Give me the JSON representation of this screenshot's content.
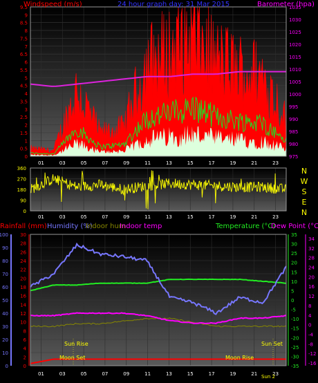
{
  "top": {
    "title": "24 hour graph day: 31 Mar 2015",
    "left_label": "Windspeed (m/s)",
    "right_label": "Barometer (hpa)",
    "left_ticks": [
      "0",
      "0.5",
      "1",
      "1.5",
      "2",
      "2.5",
      "3",
      "3.5",
      "4",
      "4.5",
      "5",
      "5.5",
      "6",
      "6.5",
      "7",
      "7.5",
      "8",
      "8.5",
      "9",
      "9.5"
    ],
    "right_ticks": [
      "975",
      "980",
      "985",
      "990",
      "995",
      "1000",
      "1005",
      "1010",
      "1015",
      "1020",
      "1025",
      "1030",
      "1035"
    ],
    "x_ticks": [
      "01",
      "03",
      "05",
      "07",
      "09",
      "11",
      "13",
      "15",
      "17",
      "19",
      "21",
      "23"
    ]
  },
  "dir": {
    "left_ticks": [
      "0",
      "90",
      "180",
      "270",
      "360"
    ],
    "compass": [
      "N",
      "W",
      "S",
      "E",
      "N"
    ],
    "x_ticks": [
      "01",
      "03",
      "05",
      "07",
      "09",
      "11",
      "13",
      "15",
      "17",
      "19",
      "21",
      "23"
    ]
  },
  "bottom": {
    "rain_label": "Rainfall (mm)",
    "hum_label": "Humidity (%)",
    "inhum_label": "Indoor hum",
    "intemp_label": "Indoor temp",
    "temp_label": "Temperature (°C)",
    "dew_label": "Dew Point (°C)",
    "hum_ticks": [
      "0",
      "10",
      "20",
      "30",
      "40",
      "50",
      "60",
      "70",
      "80",
      "90",
      "100"
    ],
    "rain_ticks": [
      "0",
      "2",
      "4",
      "6",
      "8",
      "10",
      "12",
      "14",
      "16",
      "18",
      "20",
      "22",
      "24",
      "26",
      "28",
      "30"
    ],
    "temp_ticks": [
      "-35",
      "-30",
      "-25",
      "-20",
      "-15",
      "-10",
      "-5",
      "0",
      "5",
      "10",
      "15",
      "20",
      "25",
      "30",
      "35"
    ],
    "dew_ticks": [
      "-16",
      "-12",
      "-8",
      "-4",
      "0",
      "4",
      "8",
      "12",
      "16",
      "20",
      "24",
      "28",
      "32",
      "34"
    ],
    "x_ticks": [
      "01",
      "03",
      "05",
      "07",
      "09",
      "11",
      "13",
      "15",
      "17",
      "19",
      "21",
      "23"
    ],
    "sun_rise": "Sun Rise",
    "sun_set": "Sun Set",
    "moon_set": "Moon Set",
    "moon_rise": "Moon Rise",
    "sun_set_short": "Sun Se",
    "moon_short": "Sun 2"
  },
  "colors": {
    "wind_gust": "#ff0000",
    "wind_avg": "#22dd22",
    "wind_low": "#ddffdd",
    "barometer": "#dd22dd",
    "direction": "#ffff00",
    "humidity": "#7777ff",
    "temperature": "#22ee22",
    "dew_point": "#ff00ff",
    "indoor_hum": "#888800",
    "rainfall": "#ff0000"
  },
  "chart_data": [
    {
      "type": "line",
      "title": "24 hour graph day: 31 Mar 2015",
      "ylabel": "Windspeed (m/s)",
      "ylim": [
        0,
        9.5
      ],
      "y2label": "Barometer (hpa)",
      "y2lim": [
        975,
        1035
      ],
      "x": [
        "01",
        "03",
        "05",
        "07",
        "09",
        "11",
        "13",
        "15",
        "17",
        "19",
        "21",
        "23"
      ],
      "series": [
        {
          "name": "Windspeed (m/s)",
          "values": [
            0.4,
            0.3,
            3.5,
            1.2,
            1.5,
            4.8,
            5.5,
            6.2,
            5.0,
            4.5,
            4.2,
            2.0
          ]
        },
        {
          "name": "Barometer (hpa)",
          "values": [
            1004,
            1003,
            1004,
            1005,
            1006,
            1007,
            1007,
            1008,
            1008,
            1009,
            1009,
            1009
          ]
        }
      ]
    },
    {
      "type": "line",
      "ylabel": "",
      "ylim": [
        0,
        360
      ],
      "x": [
        "01",
        "03",
        "05",
        "07",
        "09",
        "11",
        "13",
        "15",
        "17",
        "19",
        "21",
        "23"
      ],
      "series": [
        {
          "name": "",
          "values": [
            180,
            270,
            200,
            220,
            180,
            210,
            230,
            220,
            210,
            200,
            200,
            180
          ]
        }
      ]
    },
    {
      "type": "line",
      "ylim": [
        0,
        100
      ],
      "x": [
        "01",
        "03",
        "05",
        "07",
        "09",
        "11",
        "13",
        "15",
        "17",
        "19",
        "21",
        "23"
      ],
      "series": [
        {
          "name": "Humidity (%)",
          "values": [
            60,
            70,
            92,
            85,
            83,
            80,
            52,
            48,
            40,
            52,
            48,
            75
          ]
        },
        {
          "name": "Temperature (°C)",
          "values": [
            5,
            8,
            8,
            9,
            9,
            9,
            11,
            11,
            11,
            11,
            10,
            9
          ]
        },
        {
          "name": "Dew Point (°C)",
          "values": [
            3,
            3,
            4,
            4,
            4,
            3,
            1,
            0,
            0,
            2,
            2,
            3
          ]
        },
        {
          "name": "Indoor hum",
          "values": [
            30,
            30,
            32,
            32,
            34,
            36,
            36,
            33,
            30,
            30,
            30,
            30
          ]
        },
        {
          "name": "Rainfall (mm)",
          "values": [
            0.5,
            1.5,
            1.5,
            1.5,
            1.5,
            1.5,
            1.5,
            1.5,
            1.5,
            1.5,
            1.5,
            1.5
          ]
        }
      ]
    }
  ]
}
